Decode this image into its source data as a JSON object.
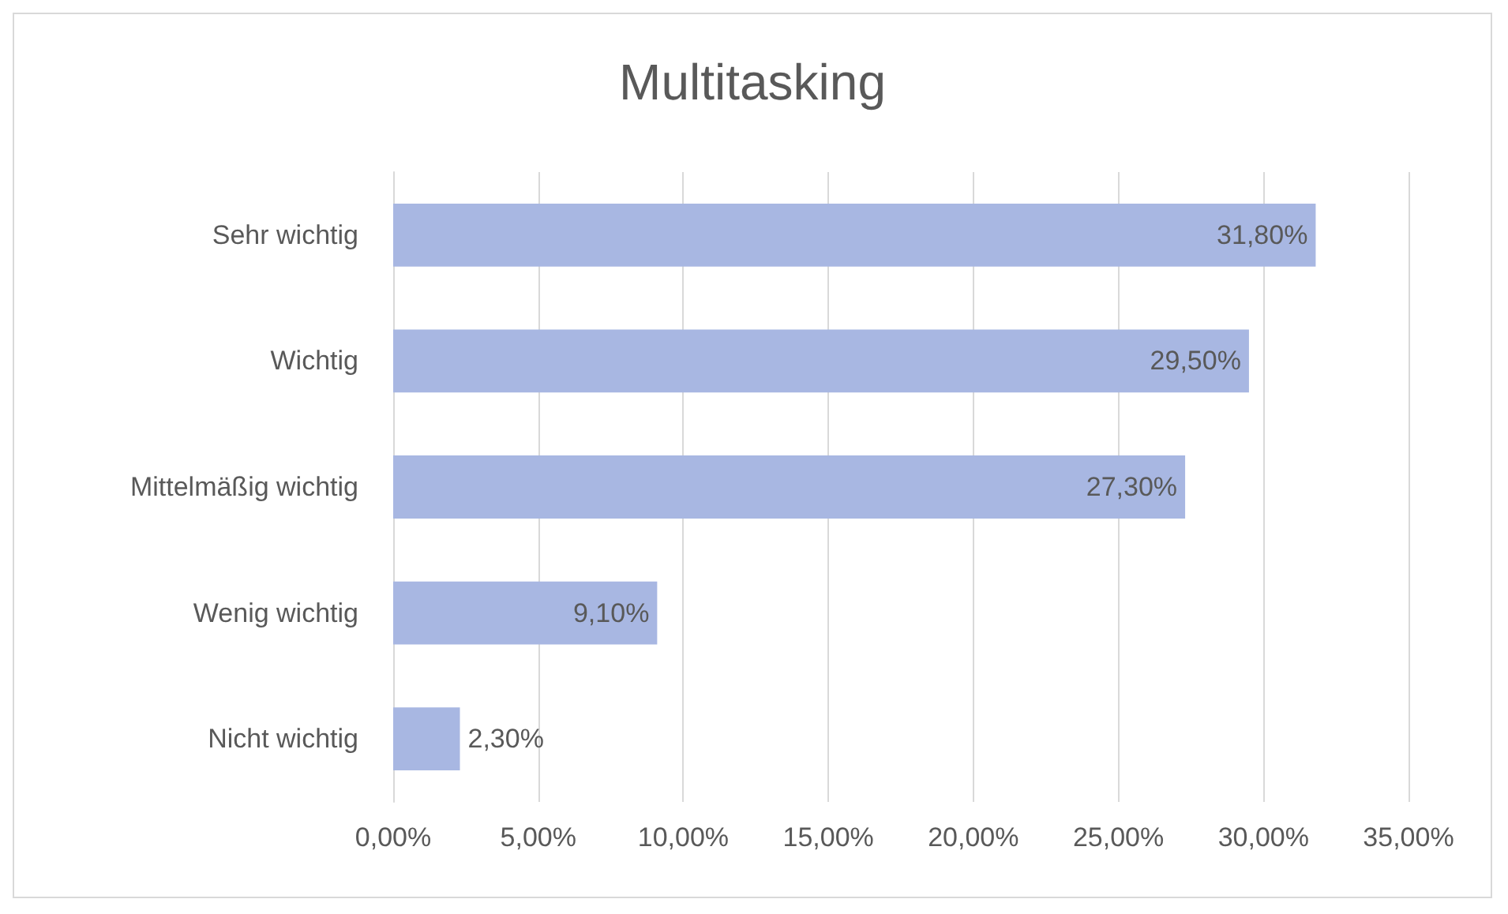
{
  "chart_data": {
    "type": "bar",
    "orientation": "horizontal",
    "title": "Multitasking",
    "categories": [
      "Sehr wichtig",
      "Wichtig",
      "Mittelmäßig wichtig",
      "Wenig wichtig",
      "Nicht wichtig"
    ],
    "values": [
      31.8,
      29.5,
      27.3,
      9.1,
      2.3
    ],
    "value_labels": [
      "31,80%",
      "29,50%",
      "27,30%",
      "9,10%",
      "2,30%"
    ],
    "color": "#a8b7e2",
    "xlim": [
      0,
      35
    ],
    "xticks": [
      {
        "value": 0,
        "label": "0,00%"
      },
      {
        "value": 5,
        "label": "5,00%"
      },
      {
        "value": 10,
        "label": "10,00%"
      },
      {
        "value": 15,
        "label": "15,00%"
      },
      {
        "value": 20,
        "label": "20,00%"
      },
      {
        "value": 25,
        "label": "25,00%"
      },
      {
        "value": 30,
        "label": "30,00%"
      },
      {
        "value": 35,
        "label": "35,00%"
      }
    ],
    "grid": "x"
  }
}
